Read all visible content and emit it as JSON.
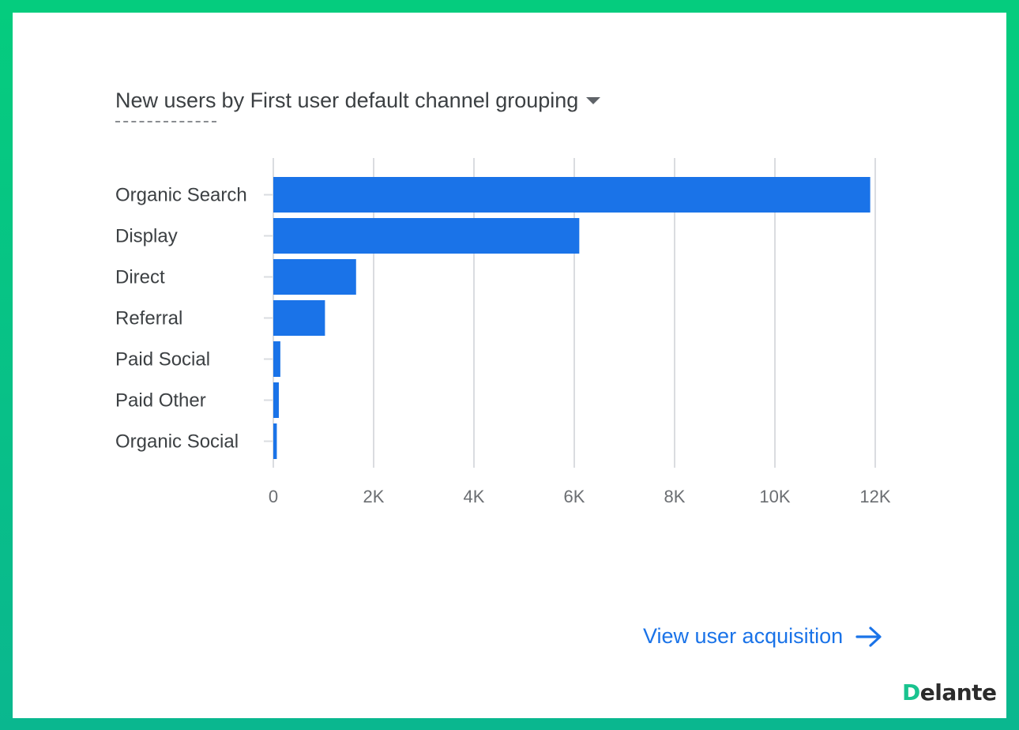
{
  "chart_data": {
    "type": "bar",
    "orientation": "horizontal",
    "title_metric": "New users",
    "title_dimension": "by First user default channel grouping",
    "categories": [
      "Organic Search",
      "Display",
      "Direct",
      "Referral",
      "Paid Social",
      "Paid Other",
      "Organic Social"
    ],
    "values": [
      11900,
      6100,
      1650,
      1030,
      140,
      110,
      70
    ],
    "xlim": [
      0,
      12000
    ],
    "xticks": [
      0,
      2000,
      4000,
      6000,
      8000,
      10000,
      12000
    ],
    "xtick_labels": [
      "0",
      "2K",
      "4K",
      "6K",
      "8K",
      "10K",
      "12K"
    ],
    "grid": true,
    "bar_color": "#1a73e8"
  },
  "footer": {
    "link_label": "View user acquisition"
  },
  "brand": {
    "first_letter": "D",
    "rest": "elante"
  },
  "colors": {
    "frame_top": "#05cc7e",
    "frame_bottom": "#0ab78f",
    "accent": "#1a73e8"
  }
}
